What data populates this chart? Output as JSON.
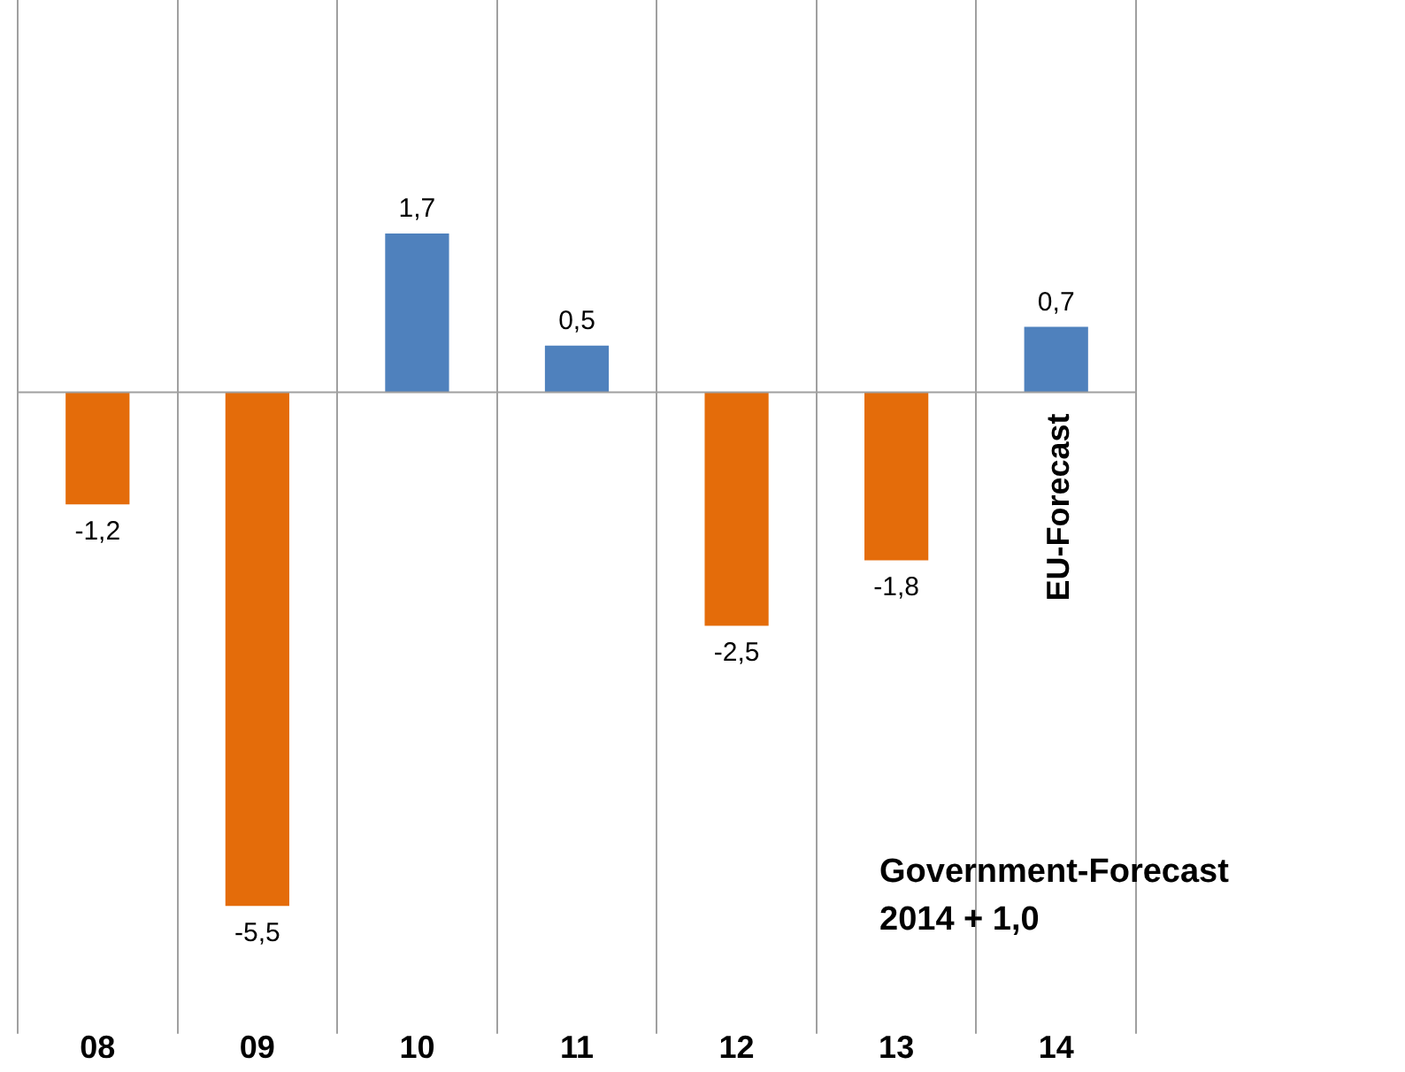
{
  "chart_data": {
    "type": "bar",
    "categories": [
      "08",
      "09",
      "10",
      "11",
      "12",
      "13",
      "14"
    ],
    "values": [
      -1.2,
      -5.5,
      1.7,
      0.5,
      -2.5,
      -1.8,
      0.7
    ],
    "value_labels": [
      "-1,2",
      "-5,5",
      "1,7",
      "0,5",
      "-2,5",
      "-1,8",
      "0,7"
    ],
    "colors": [
      "#e46c0a",
      "#e46c0a",
      "#4f81bd",
      "#4f81bd",
      "#e46c0a",
      "#e46c0a",
      "#4f81bd"
    ],
    "ylim": [
      -6.3,
      4.2
    ],
    "grid": "x",
    "legend": false,
    "tick_labels": "x",
    "annotations": [
      "EU-Forecast",
      "Government-Forecast\n2014 + 1,0"
    ]
  }
}
